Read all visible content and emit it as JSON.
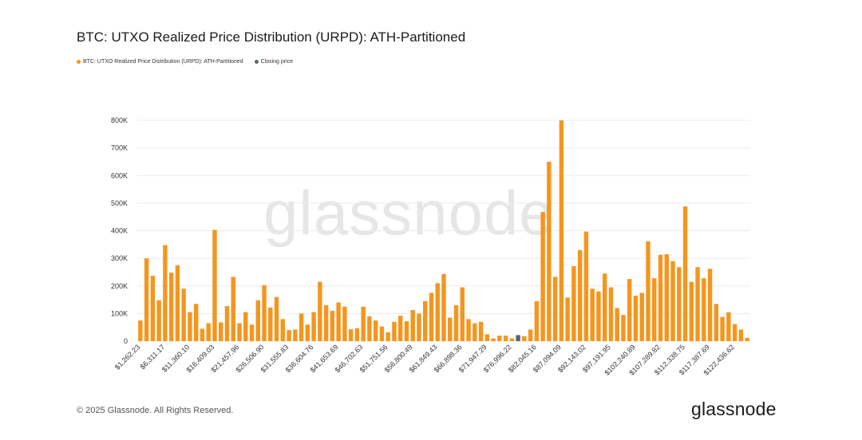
{
  "header": {
    "title": "BTC: UTXO Realized Price Distribution (URPD): ATH-Partitioned"
  },
  "legend": {
    "series_label": "BTC: UTXO Realized Price Distribution (URPD): ATH-Partitioned",
    "closing_label": "Closing price"
  },
  "watermark": "glassnode",
  "footer": {
    "copyright": "© 2025 Glassnode. All Rights Reserved.",
    "brand": "glassnode"
  },
  "colors": {
    "bar": "#f4961e",
    "closing": "#5a6675",
    "grid": "#ececec",
    "axis_text": "#333333"
  },
  "chart_data": {
    "type": "bar",
    "title": "BTC: UTXO Realized Price Distribution (URPD): ATH-Partitioned",
    "xlabel": "",
    "ylabel": "",
    "ylim": [
      0,
      800000
    ],
    "yticks": [
      0,
      100000,
      200000,
      300000,
      400000,
      500000,
      600000,
      700000,
      800000
    ],
    "ytick_labels": [
      "0",
      "100K",
      "200K",
      "300K",
      "400K",
      "500K",
      "600K",
      "700K",
      "800K"
    ],
    "xtick_labels": [
      "$1,262.23",
      "$6,311.17",
      "$11,360.10",
      "$16,409.03",
      "$21,457.96",
      "$26,506.90",
      "$31,555.83",
      "$36,604.76",
      "$41,653.69",
      "$46,702.63",
      "$51,751.56",
      "$56,800.49",
      "$61,849.43",
      "$66,898.36",
      "$71,947.29",
      "$76,996.22",
      "$82,045.16",
      "$87,094.09",
      "$92,143.02",
      "$97,191.95",
      "$102,240.89",
      "$107,289.82",
      "$112,338.75",
      "$117,387.69",
      "$122,436.62"
    ],
    "closing_price_index": 61,
    "values": [
      75000,
      300000,
      237000,
      148000,
      348000,
      248000,
      275000,
      190000,
      105000,
      135000,
      45000,
      65000,
      403000,
      68000,
      127000,
      233000,
      65000,
      105000,
      60000,
      148000,
      203000,
      122000,
      160000,
      80000,
      40000,
      42000,
      100000,
      60000,
      105000,
      215000,
      130000,
      110000,
      140000,
      125000,
      43000,
      47000,
      125000,
      90000,
      75000,
      53000,
      32000,
      70000,
      92000,
      72000,
      113000,
      100000,
      145000,
      175000,
      210000,
      243000,
      85000,
      130000,
      195000,
      80000,
      65000,
      70000,
      25000,
      10000,
      20000,
      20000,
      10000,
      22000,
      18000,
      42000,
      145000,
      468000,
      650000,
      233000,
      800000,
      158000,
      272000,
      330000,
      397000,
      190000,
      180000,
      245000,
      195000,
      120000,
      95000,
      225000,
      165000,
      175000,
      362000,
      228000,
      313000,
      315000,
      290000,
      268000,
      488000,
      215000,
      268000,
      228000,
      262000,
      135000,
      88000,
      105000,
      62000,
      42000,
      12000
    ]
  }
}
